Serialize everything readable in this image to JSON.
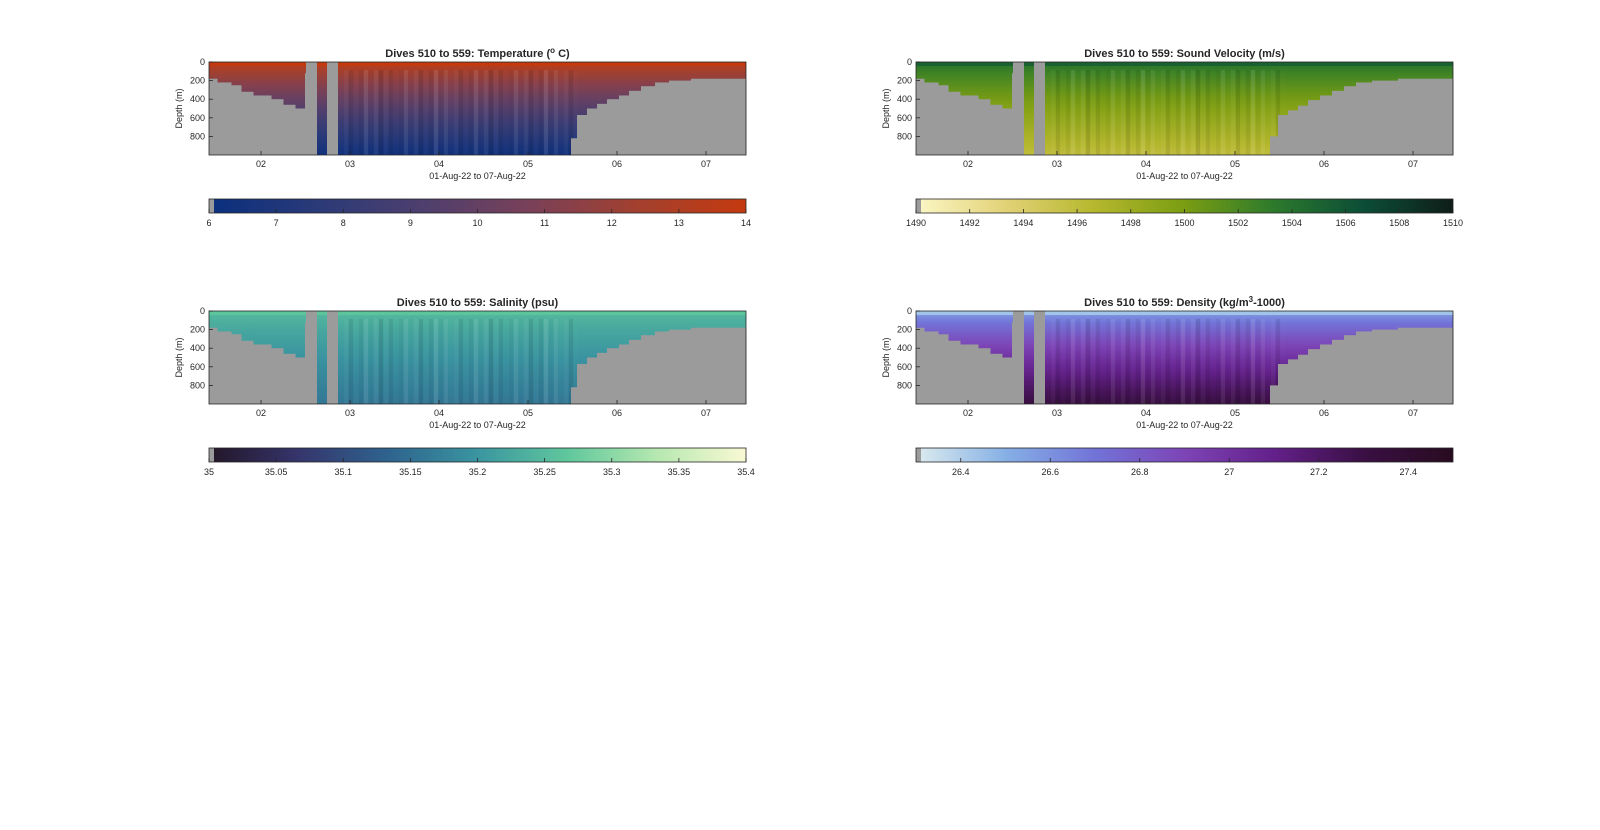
{
  "chart_data": [
    {
      "type": "heatmap",
      "title": "Dives 510 to 559: Temperature (",
      "title_sup": "o",
      "title_tail": " C)",
      "ylabel": "Depth (m)",
      "xlabel": "01-Aug-22 to 07-Aug-22",
      "x_ticks": [
        "02",
        "03",
        "04",
        "05",
        "06",
        "07"
      ],
      "y_ticks": [
        "0",
        "200",
        "400",
        "600",
        "800"
      ],
      "ylim": [
        0,
        990
      ],
      "y_reversed": true,
      "colorbar": {
        "range": [
          6,
          14
        ],
        "ticks": [
          "6",
          "7",
          "8",
          "9",
          "10",
          "11",
          "12",
          "13",
          "14"
        ],
        "colors": [
          "#0a2f7e",
          "#2a3a78",
          "#4e3f6e",
          "#7a4058",
          "#a3402e",
          "#c43a0f"
        ]
      },
      "top_value": 13.6,
      "bottom_value": 6.3
    },
    {
      "type": "heatmap",
      "title": "Dives 510 to 559: Sound Velocity (m/s)",
      "ylabel": "Depth (m)",
      "xlabel": "01-Aug-22 to 07-Aug-22",
      "x_ticks": [
        "02",
        "03",
        "04",
        "05",
        "06",
        "07"
      ],
      "y_ticks": [
        "0",
        "200",
        "400",
        "600",
        "800"
      ],
      "ylim": [
        0,
        990
      ],
      "y_reversed": true,
      "colorbar": {
        "range": [
          1490,
          1510
        ],
        "ticks": [
          "1490",
          "1492",
          "1494",
          "1496",
          "1498",
          "1500",
          "1502",
          "1504",
          "1506",
          "1508",
          "1510"
        ],
        "colors": [
          "#fbf7c6",
          "#e2d277",
          "#b6b72d",
          "#7a9d12",
          "#2c7a2c",
          "#0b4d37",
          "#0f1d19"
        ]
      },
      "top_value": 1504,
      "bottom_value": 1496
    },
    {
      "type": "heatmap",
      "title": "Dives 510 to 559: Salinity (psu)",
      "ylabel": "Depth (m)",
      "xlabel": "01-Aug-22 to 07-Aug-22",
      "x_ticks": [
        "02",
        "03",
        "04",
        "05",
        "06",
        "07"
      ],
      "y_ticks": [
        "0",
        "200",
        "400",
        "600",
        "800"
      ],
      "ylim": [
        0,
        990
      ],
      "y_reversed": true,
      "colorbar": {
        "range": [
          35,
          35.4
        ],
        "ticks": [
          "35",
          "35.05",
          "35.1",
          "35.15",
          "35.2",
          "35.25",
          "35.3",
          "35.35",
          "35.4"
        ],
        "colors": [
          "#231627",
          "#35356c",
          "#2e638e",
          "#3a95a0",
          "#5fc79c",
          "#b6e8b0",
          "#f9f9d4"
        ]
      },
      "top_value": 35.25,
      "bottom_value": 35.16
    },
    {
      "type": "heatmap",
      "title": "Dives 510 to 559: Density (kg/m",
      "title_sup": "3",
      "title_tail": "-1000)",
      "ylabel": "Depth (m)",
      "xlabel": "01-Aug-22 to 07-Aug-22",
      "x_ticks": [
        "02",
        "03",
        "04",
        "05",
        "06",
        "07"
      ],
      "y_ticks": [
        "0",
        "200",
        "400",
        "600",
        "800"
      ],
      "ylim": [
        0,
        990
      ],
      "y_reversed": true,
      "colorbar": {
        "range": [
          26.3,
          27.5
        ],
        "ticks": [
          "26.4",
          "26.6",
          "26.8",
          "27",
          "27.2",
          "27.4"
        ],
        "tick_values": [
          26.4,
          26.6,
          26.8,
          27.0,
          27.2,
          27.4
        ],
        "colors": [
          "#dcecef",
          "#86b0e5",
          "#7273d8",
          "#7d44b6",
          "#63208a",
          "#3a0f44",
          "#280b1f"
        ]
      },
      "top_value": 26.55,
      "bottom_value": 27.32
    }
  ]
}
